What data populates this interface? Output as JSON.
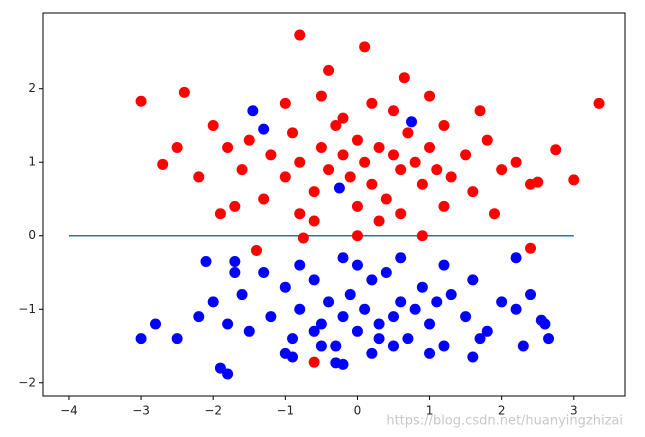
{
  "chart_data": {
    "type": "scatter",
    "xlim": [
      -4.36,
      3.71
    ],
    "ylim": [
      -2.18,
      3.03
    ],
    "xticks": [
      {
        "value": -4,
        "label": "−4"
      },
      {
        "value": -3,
        "label": "−3"
      },
      {
        "value": -2,
        "label": "−2"
      },
      {
        "value": -1,
        "label": "−1"
      },
      0,
      1,
      2,
      3
    ],
    "yticks": [
      {
        "value": -2,
        "label": "−2"
      },
      {
        "value": -1,
        "label": "−1"
      },
      0,
      1,
      2
    ],
    "line": {
      "color": "#1f77b4",
      "x": [
        -4,
        3
      ],
      "y": [
        0,
        0
      ]
    },
    "series": [
      {
        "color": "#ff0000",
        "x": [
          -3.0,
          3.35,
          -0.8,
          0.1,
          -0.6,
          2.4,
          -1.4,
          -0.75,
          0.0,
          0.9,
          3.0,
          2.75,
          -2.7,
          -2.4,
          -0.4,
          0.65,
          -2.5,
          2.5,
          1.9,
          -1.9,
          -2.0,
          -1.8,
          -1.6,
          -1.5,
          -1.2,
          -1.0,
          -0.9,
          -0.8,
          -0.6,
          -0.5,
          -0.4,
          -0.3,
          -0.2,
          -0.1,
          0.0,
          0.1,
          0.2,
          0.3,
          0.4,
          0.5,
          0.6,
          0.7,
          0.8,
          0.9,
          1.0,
          1.1,
          1.2,
          1.3,
          1.5,
          1.6,
          1.8,
          2.0,
          2.2,
          2.4,
          -1.0,
          -0.5,
          0.2,
          0.5,
          1.0,
          -1.3,
          -0.8,
          0.0,
          0.6,
          1.2,
          -2.2,
          -1.7,
          1.7,
          -0.2,
          0.3,
          -0.6
        ],
        "y": [
          1.83,
          1.8,
          2.73,
          2.57,
          -1.72,
          -0.17,
          -0.2,
          -0.03,
          0.0,
          0.0,
          0.76,
          1.17,
          0.97,
          1.95,
          2.25,
          2.15,
          1.2,
          0.73,
          0.3,
          0.3,
          1.5,
          1.2,
          0.9,
          1.3,
          1.1,
          0.8,
          1.4,
          1.0,
          0.6,
          1.2,
          0.9,
          1.5,
          1.1,
          0.8,
          1.3,
          1.0,
          0.7,
          1.2,
          0.5,
          1.1,
          0.9,
          1.4,
          1.0,
          0.7,
          1.2,
          0.9,
          1.5,
          0.8,
          1.1,
          0.6,
          1.3,
          0.9,
          1.0,
          0.7,
          1.8,
          1.9,
          1.8,
          1.7,
          1.9,
          0.5,
          0.3,
          0.4,
          0.3,
          0.4,
          0.8,
          0.4,
          1.7,
          1.6,
          0.2,
          0.2
        ]
      },
      {
        "color": "#0000ff",
        "x": [
          -1.45,
          -1.3,
          0.75,
          -0.25,
          -3.0,
          -2.8,
          -2.5,
          -1.9,
          -1.8,
          -0.2,
          -0.3,
          2.6,
          2.55,
          2.65,
          2.2,
          -2.1,
          -1.7,
          -0.9,
          1.6,
          2.3,
          -2.0,
          -1.8,
          -1.6,
          -1.5,
          -1.2,
          -1.0,
          -0.9,
          -0.8,
          -0.6,
          -0.5,
          -0.4,
          -0.3,
          -0.2,
          -0.1,
          0.0,
          0.1,
          0.2,
          0.3,
          0.4,
          0.5,
          0.6,
          0.7,
          0.8,
          0.9,
          1.0,
          1.1,
          1.2,
          1.3,
          1.5,
          1.6,
          1.8,
          2.0,
          2.2,
          2.4,
          -1.0,
          -0.5,
          0.2,
          0.5,
          1.0,
          -1.3,
          -0.8,
          0.0,
          0.6,
          1.2,
          -2.2,
          -1.7,
          1.7,
          -0.2,
          0.3,
          -0.6
        ],
        "y": [
          1.7,
          1.45,
          1.55,
          0.65,
          -1.4,
          -1.2,
          -1.4,
          -1.8,
          -1.88,
          -1.75,
          -1.73,
          -1.2,
          -1.15,
          -1.4,
          -0.3,
          -0.35,
          -0.35,
          -1.65,
          -1.65,
          -1.5,
          -0.9,
          -1.2,
          -0.8,
          -1.3,
          -1.1,
          -0.7,
          -1.4,
          -1.0,
          -0.6,
          -1.2,
          -0.9,
          -1.5,
          -1.1,
          -0.8,
          -1.3,
          -1.0,
          -0.6,
          -1.2,
          -0.5,
          -1.1,
          -0.9,
          -1.4,
          -1.0,
          -0.7,
          -1.2,
          -0.9,
          -1.5,
          -0.8,
          -1.1,
          -0.6,
          -1.3,
          -0.9,
          -1.0,
          -0.8,
          -1.6,
          -1.5,
          -1.6,
          -1.5,
          -1.6,
          -0.5,
          -0.4,
          -0.4,
          -0.3,
          -0.4,
          -1.1,
          -0.5,
          -1.4,
          -0.3,
          -1.4,
          -1.3
        ]
      }
    ],
    "watermark": "https://blog.csdn.net/huanyingzhizai"
  }
}
